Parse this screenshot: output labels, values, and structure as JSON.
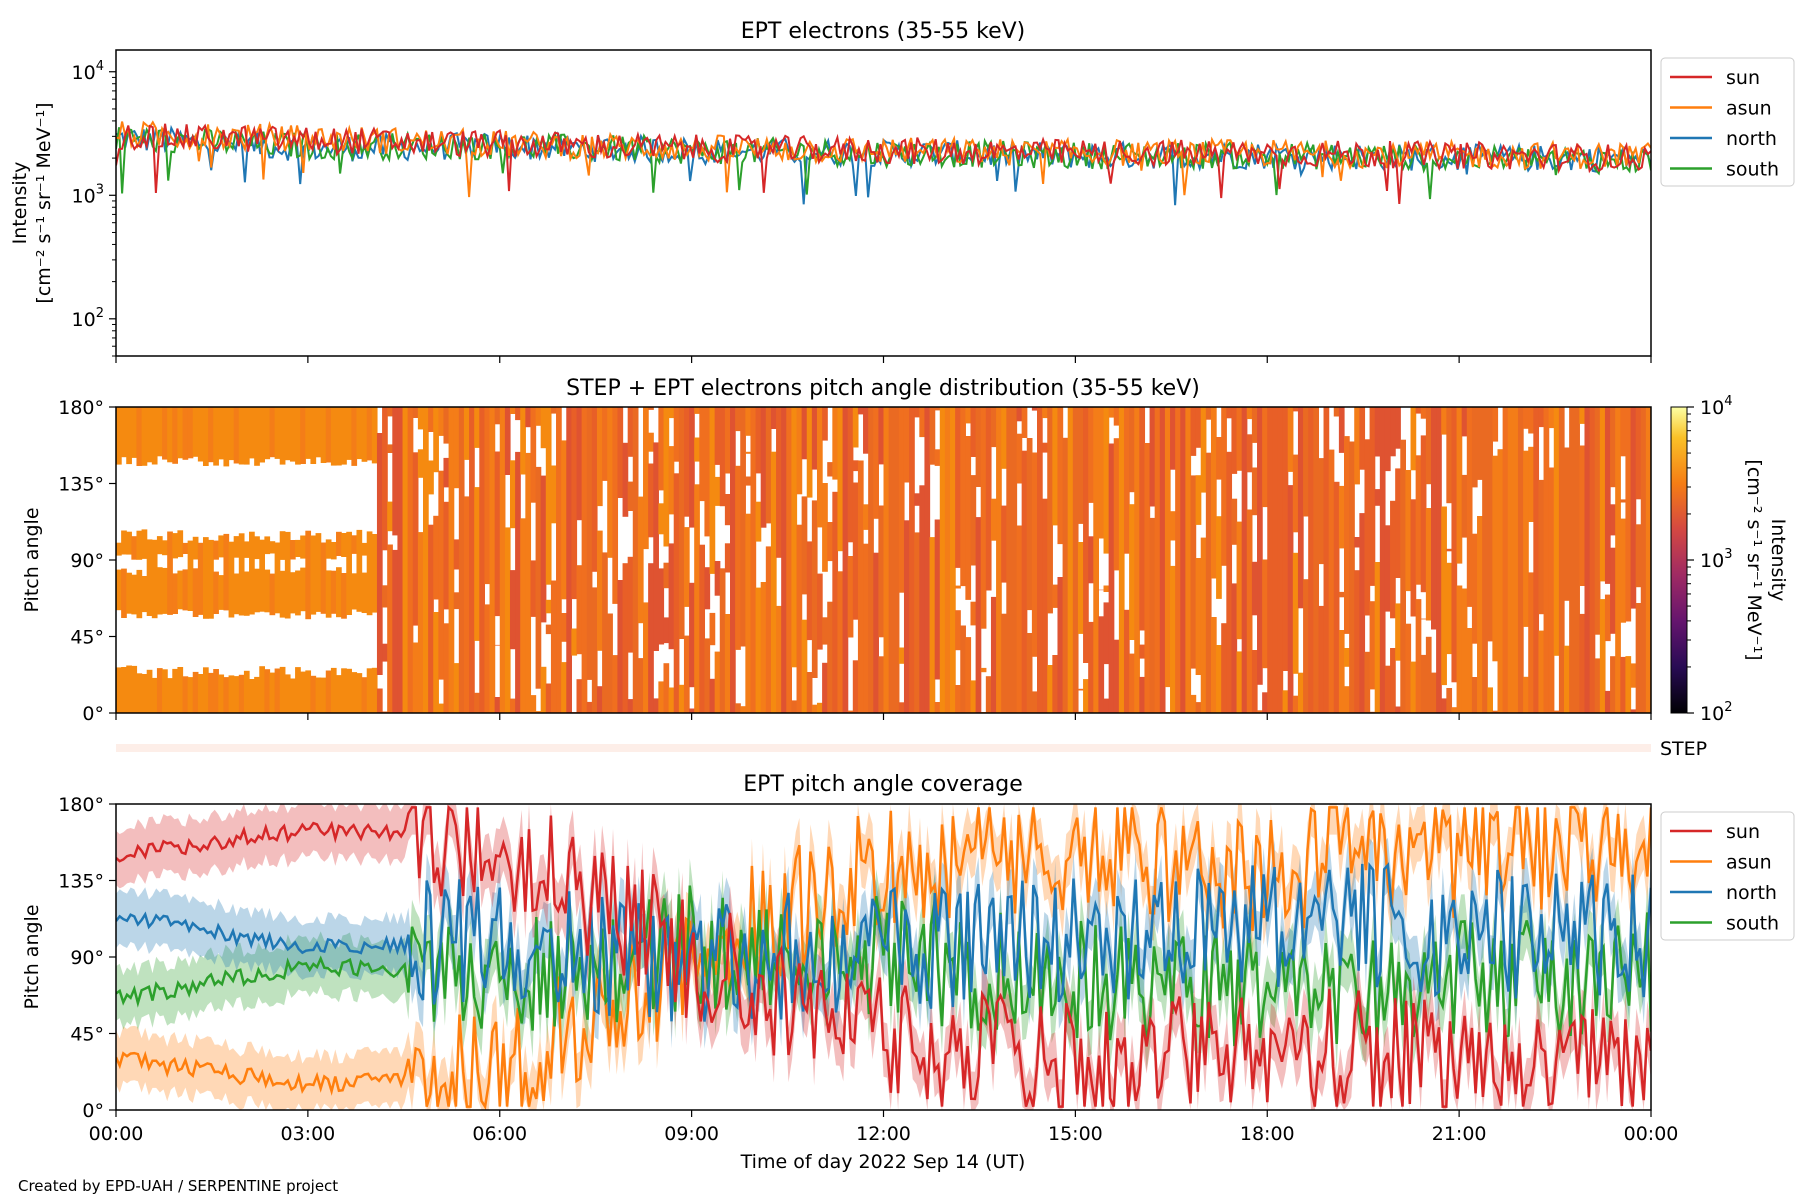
{
  "footer": "Created by EPD-UAH / SERPENTINE project",
  "colors": {
    "sun": "#d62728",
    "asun": "#ff7f0e",
    "north": "#1f77b4",
    "south": "#2ca02c",
    "step_strip": "#fdeee8"
  },
  "chart_data": [
    {
      "type": "line",
      "title": "EPT electrons (35-55 keV)",
      "ylabel_line1": "Intensity",
      "ylabel_line2": "[cm⁻² s⁻¹ sr⁻¹ MeV⁻¹]",
      "yscale": "log",
      "ylim": [
        50,
        15000
      ],
      "yticks": [
        {
          "value": 100,
          "mantissa": "10",
          "exp": "2"
        },
        {
          "value": 1000,
          "mantissa": "10",
          "exp": "3"
        },
        {
          "value": 10000,
          "mantissa": "10",
          "exp": "4"
        }
      ],
      "x": [
        "2022-09-14 00:00",
        "2022-09-14 03:00",
        "2022-09-14 06:00",
        "2022-09-14 09:00",
        "2022-09-14 12:00",
        "2022-09-14 15:00",
        "2022-09-14 18:00",
        "2022-09-14 21:00",
        "2022-09-15 00:00"
      ],
      "legend_position": "outside-top-right",
      "legend": [
        "sun",
        "asun",
        "north",
        "south"
      ],
      "series": [
        {
          "name": "sun",
          "values": [
            3000,
            2800,
            2600,
            2400,
            2300,
            2200,
            2200,
            2100,
            2000
          ]
        },
        {
          "name": "asun",
          "values": [
            3100,
            2900,
            2600,
            2400,
            2300,
            2200,
            2200,
            2100,
            2100
          ]
        },
        {
          "name": "north",
          "values": [
            2900,
            2400,
            2500,
            2300,
            2200,
            2100,
            2100,
            2000,
            2000
          ]
        },
        {
          "name": "south",
          "values": [
            2900,
            2500,
            2500,
            2300,
            2200,
            2100,
            2100,
            2000,
            1900
          ]
        }
      ]
    },
    {
      "type": "heatmap",
      "title": "STEP + EPT electrons pitch angle distribution (35-55 keV)",
      "ylabel": "Pitch angle",
      "ylim": [
        0,
        180
      ],
      "yticks": [
        "0°",
        "45°",
        "90°",
        "135°",
        "180°"
      ],
      "colorbar": {
        "label_line1": "Intensity",
        "label_line2": "[cm⁻² s⁻¹ sr⁻¹ MeV⁻¹]",
        "scale": "log",
        "range": [
          100,
          10000
        ],
        "ticks": [
          {
            "mantissa": "10",
            "exp": "2"
          },
          {
            "mantissa": "10",
            "exp": "3"
          },
          {
            "mantissa": "10",
            "exp": "4"
          }
        ],
        "colormap": "inferno"
      },
      "step_label": "STEP"
    },
    {
      "type": "line",
      "title": "EPT pitch angle coverage",
      "ylabel": "Pitch angle",
      "xlabel": "Time of day 2022 Sep 14 (UT)",
      "ylim": [
        0,
        180
      ],
      "yticks": [
        "0°",
        "45°",
        "90°",
        "135°",
        "180°"
      ],
      "xticks": [
        "00:00",
        "03:00",
        "06:00",
        "09:00",
        "12:00",
        "15:00",
        "18:00",
        "21:00",
        "00:00"
      ],
      "legend_position": "outside-top-right",
      "legend": [
        "sun",
        "asun",
        "north",
        "south"
      ],
      "series": [
        {
          "name": "sun",
          "values": [
            150,
            165,
            160,
            90,
            40,
            25,
            35,
            30,
            20
          ]
        },
        {
          "name": "asun",
          "values": [
            30,
            15,
            20,
            90,
            145,
            155,
            140,
            150,
            160
          ]
        },
        {
          "name": "north",
          "values": [
            115,
            95,
            100,
            85,
            95,
            100,
            110,
            105,
            100
          ]
        },
        {
          "name": "south",
          "values": [
            65,
            85,
            80,
            95,
            90,
            75,
            70,
            75,
            80
          ]
        }
      ]
    }
  ]
}
